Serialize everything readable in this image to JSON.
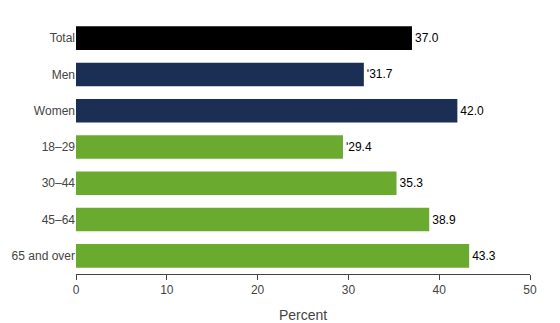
{
  "chart_data": {
    "type": "bar",
    "orientation": "horizontal",
    "categories": [
      "Total",
      "Men",
      "Women",
      "18–29",
      "30–44",
      "45–64",
      "65 and over"
    ],
    "values": [
      37.0,
      31.7,
      42.0,
      29.4,
      35.3,
      38.9,
      43.3
    ],
    "value_labels": [
      "37.0",
      "ʹ31.7",
      "42.0",
      "ʹ29.4",
      "35.3",
      "38.9",
      "43.3"
    ],
    "colors": [
      "#000000",
      "#1b2f54",
      "#1b2f54",
      "#6aaa2e",
      "#6aaa2e",
      "#6aaa2e",
      "#6aaa2e"
    ],
    "xlabel": "Percent",
    "xlim": [
      0,
      50
    ],
    "xticks": [
      0,
      10,
      20,
      30,
      40,
      50
    ],
    "grid": false,
    "data_labels": true
  }
}
